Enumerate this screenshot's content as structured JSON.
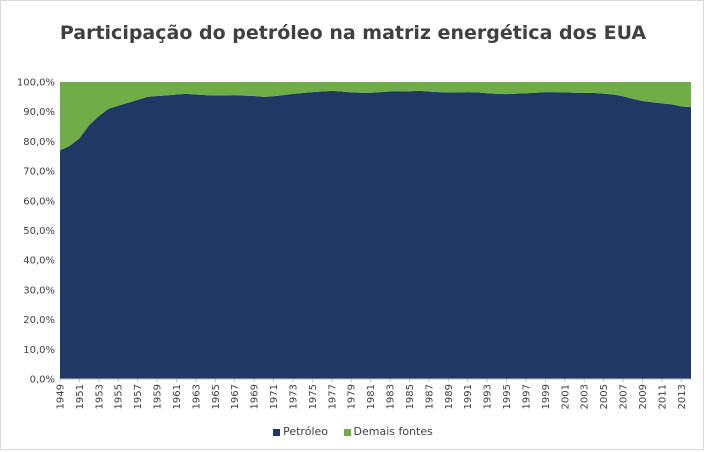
{
  "colors": {
    "petroleo": "#1f3864",
    "demais": "#70ad47"
  },
  "chart_data": {
    "type": "area",
    "title": "Participação do petróleo na matriz energética dos EUA",
    "xlabel": "",
    "ylabel": "",
    "ylim": [
      0,
      100
    ],
    "stacked": true,
    "grid": false,
    "legend_position": "bottom",
    "ytick_labels": [
      "0,0%",
      "10,0%",
      "20,0%",
      "30,0%",
      "40,0%",
      "50,0%",
      "60,0%",
      "70,0%",
      "80,0%",
      "90,0%",
      "100,0%"
    ],
    "xtick_labels": [
      "1949",
      "1951",
      "1953",
      "1955",
      "1957",
      "1959",
      "1961",
      "1963",
      "1965",
      "1967",
      "1969",
      "1971",
      "1973",
      "1975",
      "1977",
      "1979",
      "1981",
      "1983",
      "1985",
      "1987",
      "1989",
      "1991",
      "1993",
      "1995",
      "1997",
      "1999",
      "2001",
      "2003",
      "2005",
      "2007",
      "2009",
      "2011",
      "2013"
    ],
    "x": [
      1949,
      1950,
      1951,
      1952,
      1953,
      1954,
      1955,
      1956,
      1957,
      1958,
      1959,
      1960,
      1961,
      1962,
      1963,
      1964,
      1965,
      1966,
      1967,
      1968,
      1969,
      1970,
      1971,
      1972,
      1973,
      1974,
      1975,
      1976,
      1977,
      1978,
      1979,
      1980,
      1981,
      1982,
      1983,
      1984,
      1985,
      1986,
      1987,
      1988,
      1989,
      1990,
      1991,
      1992,
      1993,
      1994,
      1995,
      1996,
      1997,
      1998,
      1999,
      2000,
      2001,
      2002,
      2003,
      2004,
      2005,
      2006,
      2007,
      2008,
      2009,
      2010,
      2011,
      2012,
      2013,
      2014
    ],
    "series": [
      {
        "name": "Petróleo",
        "values": [
          77.0,
          78.5,
          81.0,
          85.5,
          88.5,
          91.0,
          92.0,
          93.0,
          94.0,
          95.0,
          95.3,
          95.5,
          95.8,
          96.0,
          95.8,
          95.6,
          95.5,
          95.5,
          95.6,
          95.4,
          95.3,
          95.0,
          95.2,
          95.6,
          96.0,
          96.3,
          96.6,
          96.8,
          97.0,
          96.8,
          96.5,
          96.4,
          96.4,
          96.6,
          96.8,
          96.8,
          96.9,
          97.0,
          96.8,
          96.6,
          96.5,
          96.5,
          96.6,
          96.5,
          96.2,
          96.0,
          95.9,
          96.1,
          96.2,
          96.4,
          96.6,
          96.6,
          96.5,
          96.4,
          96.4,
          96.3,
          96.1,
          95.8,
          95.2,
          94.3,
          93.6,
          93.2,
          92.8,
          92.5,
          91.8,
          91.5
        ]
      },
      {
        "name": "Demais fontes",
        "values": [
          23.0,
          21.5,
          19.0,
          14.5,
          11.5,
          9.0,
          8.0,
          7.0,
          6.0,
          5.0,
          4.7,
          4.5,
          4.2,
          4.0,
          4.2,
          4.4,
          4.5,
          4.5,
          4.4,
          4.6,
          4.7,
          5.0,
          4.8,
          4.4,
          4.0,
          3.7,
          3.4,
          3.2,
          3.0,
          3.2,
          3.5,
          3.6,
          3.6,
          3.4,
          3.2,
          3.2,
          3.1,
          3.0,
          3.2,
          3.4,
          3.5,
          3.5,
          3.4,
          3.5,
          3.8,
          4.0,
          4.1,
          3.9,
          3.8,
          3.6,
          3.4,
          3.4,
          3.5,
          3.6,
          3.6,
          3.7,
          3.9,
          4.2,
          4.8,
          5.7,
          6.4,
          6.8,
          7.2,
          7.5,
          8.2,
          8.5
        ]
      }
    ]
  }
}
